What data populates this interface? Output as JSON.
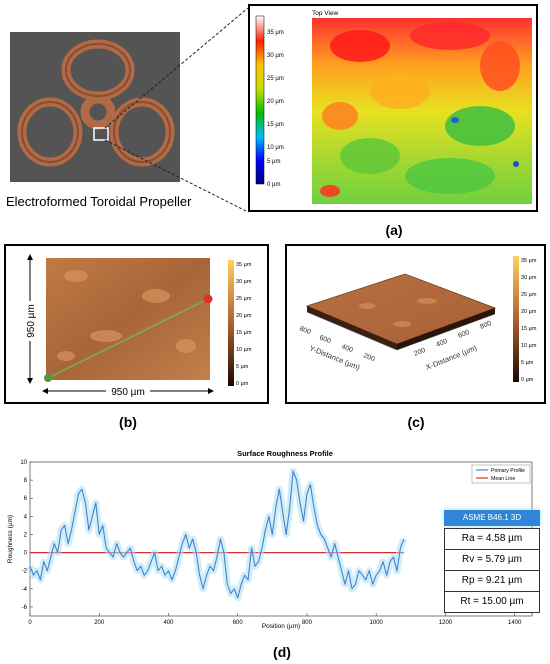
{
  "propeller_caption": "Electroformed Toroidal Propeller",
  "panel_labels": {
    "a": "(a)",
    "b": "(b)",
    "c": "(c)",
    "d": "(d)"
  },
  "top_view": {
    "title": "Top View",
    "colorbar_ticks": [
      "35 µm",
      "30 µm",
      "25 µm",
      "20 µm",
      "15 µm",
      "10 µm",
      "5 µm",
      "0 µm"
    ]
  },
  "panel_b": {
    "height_label": "950 µm",
    "width_label": "950 µm",
    "colorbar_ticks": [
      "35 µm",
      "30 µm",
      "25 µm",
      "20 µm",
      "15 µm",
      "10 µm",
      "5 µm",
      "0 µm"
    ]
  },
  "panel_c": {
    "y_axis_title": "Y-Distance (µm)",
    "x_axis_title": "X-Distance (µm)",
    "y_ticks": [
      "800",
      "600",
      "400",
      "200"
    ],
    "x_ticks": [
      "200",
      "400",
      "600",
      "800"
    ],
    "colorbar_ticks": [
      "35 µm",
      "30 µm",
      "25 µm",
      "20 µm",
      "15 µm",
      "10 µm",
      "5 µm",
      "0 µm"
    ]
  },
  "roughness_table": {
    "header": "ASME B46.1 3D",
    "rows": [
      "Ra = 4.58 µm",
      "Rv = 5.79 µm",
      "Rp = 9.21 µm",
      "Rt = 15.00 µm"
    ]
  },
  "colors": {
    "profile": "#4a7fd0",
    "mean_line": "#d03030",
    "table_header": "#2f86d8"
  },
  "chart_data": {
    "type": "line",
    "title": "Surface Roughness Profile",
    "xlabel": "Position (µm)",
    "ylabel": "Roughness (µm)",
    "xlim": [
      0,
      1450
    ],
    "ylim": [
      -7,
      10
    ],
    "xticks": [
      0,
      200,
      400,
      600,
      800,
      1000,
      1200,
      1400
    ],
    "yticks": [
      -6,
      -4,
      -2,
      0,
      2,
      4,
      6,
      8,
      10
    ],
    "grid": false,
    "legend_position": "top-right",
    "series": [
      {
        "name": "Primary Profile",
        "x": [
          0,
          10,
          20,
          30,
          40,
          50,
          60,
          70,
          80,
          90,
          100,
          110,
          120,
          130,
          140,
          150,
          160,
          170,
          180,
          190,
          200,
          210,
          220,
          230,
          240,
          250,
          260,
          270,
          280,
          290,
          300,
          310,
          320,
          330,
          340,
          350,
          360,
          370,
          380,
          390,
          400,
          410,
          420,
          430,
          440,
          450,
          460,
          470,
          480,
          490,
          500,
          510,
          520,
          530,
          540,
          550,
          560,
          570,
          580,
          590,
          600,
          610,
          620,
          630,
          640,
          650,
          660,
          670,
          680,
          690,
          700,
          710,
          720,
          730,
          740,
          750,
          760,
          770,
          780,
          790,
          800,
          810,
          820,
          830,
          840,
          850,
          860,
          870,
          880,
          890,
          900,
          910,
          920,
          930,
          940,
          950,
          960,
          970,
          980,
          990,
          1000,
          1010,
          1020,
          1030,
          1040,
          1050,
          1060,
          1070,
          1080
        ],
        "y": [
          -1.5,
          -2.5,
          -2.0,
          -3.0,
          -1.0,
          -2.0,
          -0.5,
          1.0,
          0.0,
          2.5,
          3.0,
          1.0,
          2.5,
          4.5,
          6.5,
          7.0,
          5.5,
          2.5,
          4.0,
          5.5,
          2.0,
          3.0,
          0.5,
          0.0,
          -0.5,
          1.0,
          0.0,
          -0.5,
          0.0,
          0.5,
          -1.0,
          -2.0,
          -1.5,
          -2.5,
          -2.0,
          -1.0,
          0.0,
          -2.0,
          -1.5,
          -2.5,
          -2.0,
          -3.0,
          -2.0,
          -0.5,
          1.0,
          2.0,
          0.5,
          1.5,
          0.0,
          -2.5,
          -4.0,
          -2.5,
          -1.5,
          -2.0,
          -0.5,
          1.5,
          0.0,
          -3.5,
          -4.5,
          -4.0,
          -5.0,
          -3.5,
          -2.5,
          -3.0,
          0.5,
          -1.5,
          -1.0,
          0.5,
          2.5,
          4.0,
          2.0,
          5.0,
          7.0,
          4.5,
          2.0,
          5.0,
          9.0,
          8.0,
          5.5,
          3.5,
          6.5,
          7.5,
          5.0,
          3.0,
          2.0,
          1.5,
          0.5,
          -0.5,
          1.0,
          -0.5,
          -2.0,
          -3.5,
          -2.0,
          -4.0,
          -3.5,
          -2.0,
          -2.5,
          -3.0,
          -2.0,
          -3.5,
          -2.5,
          -2.0,
          -1.0,
          -2.5,
          -1.0,
          -0.5,
          -2.0,
          0.5,
          1.5
        ]
      },
      {
        "name": "Mean Line",
        "x": [
          0,
          1080
        ],
        "y": [
          0,
          0
        ]
      }
    ]
  }
}
